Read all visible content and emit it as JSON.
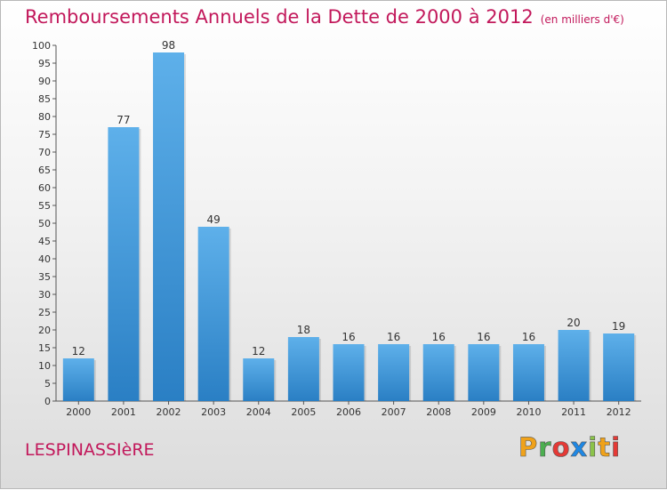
{
  "title": "Remboursements Annuels de la Dette de 2000 à 2012",
  "unit": "(en milliers d'€)",
  "commune": "LESPINASSIèRE",
  "logo": {
    "letters": [
      "P",
      "r",
      "o",
      "x",
      "i",
      "t",
      "i"
    ],
    "colors": [
      "#f0a21a",
      "#4caf50",
      "#e53935",
      "#1e88e5",
      "#8bc34a",
      "#f0a21a",
      "#e53935"
    ]
  },
  "colors": {
    "title": "#c2185b",
    "bar_top": "#5eb0ea",
    "bar_bottom": "#2a7fc4",
    "axis": "#555555"
  },
  "chart_data": {
    "type": "bar",
    "title": "Remboursements Annuels de la Dette de 2000 à 2012",
    "xlabel": "",
    "ylabel": "",
    "categories": [
      "2000",
      "2001",
      "2002",
      "2003",
      "2004",
      "2005",
      "2006",
      "2007",
      "2008",
      "2009",
      "2010",
      "2011",
      "2012"
    ],
    "values": [
      12,
      77,
      98,
      49,
      12,
      18,
      16,
      16,
      16,
      16,
      16,
      20,
      19
    ],
    "ylim": [
      0,
      100
    ],
    "yticks": [
      0,
      5,
      10,
      15,
      20,
      25,
      30,
      35,
      40,
      45,
      50,
      55,
      60,
      65,
      70,
      75,
      80,
      85,
      90,
      95,
      100
    ],
    "grid": false,
    "legend": "none"
  }
}
